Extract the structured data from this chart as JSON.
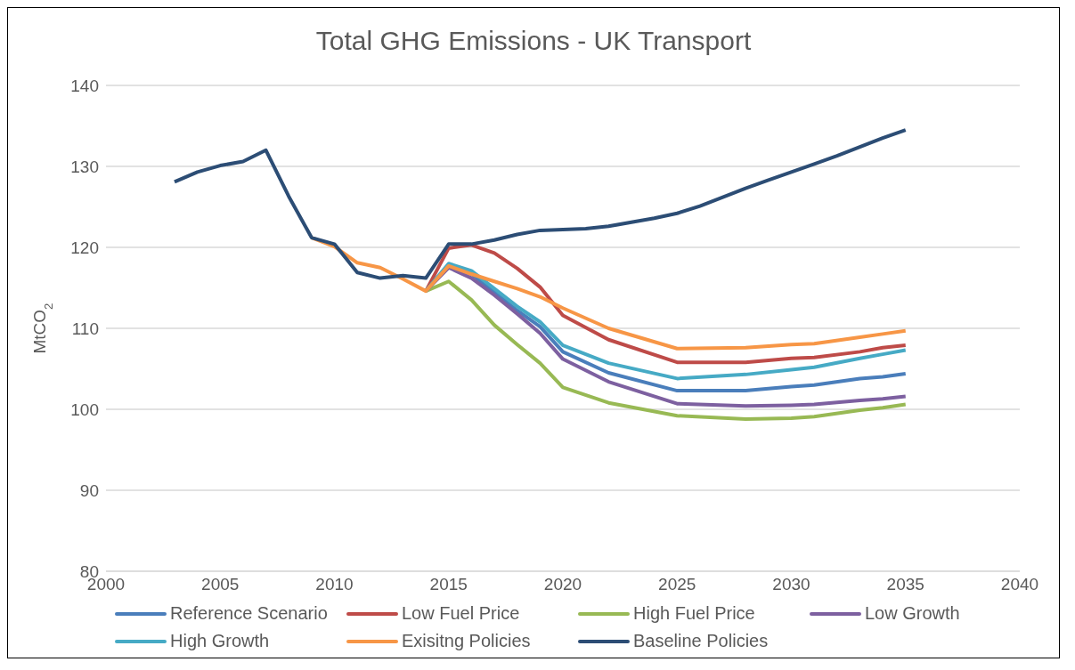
{
  "chart_data": {
    "type": "line",
    "title": "Total GHG Emissions - UK Transport",
    "ylabel": "MtCO$_{2}$",
    "xlim": [
      2000,
      2040
    ],
    "xticks": [
      2000,
      2005,
      2010,
      2015,
      2020,
      2025,
      2030,
      2035,
      2040
    ],
    "ylim": [
      80,
      140
    ],
    "yticks": [
      80,
      90,
      100,
      110,
      120,
      130,
      140
    ],
    "grid": "y",
    "legend": "bottom",
    "marker": "none",
    "line_style": "solid",
    "series": [
      {
        "name": "Reference Scenario",
        "color": "#4a7ebb",
        "x": [
          2014,
          2015,
          2016,
          2017,
          2018,
          2019,
          2020,
          2022,
          2025,
          2028,
          2030,
          2031,
          2033,
          2034,
          2035
        ],
        "values": [
          114.6,
          117.8,
          116.7,
          114.5,
          112.2,
          110.2,
          107.1,
          104.5,
          102.3,
          102.3,
          102.8,
          103.0,
          103.8,
          104.0,
          104.4
        ]
      },
      {
        "name": "Low Fuel Price",
        "color": "#be4b48",
        "x": [
          2014,
          2015,
          2016,
          2017,
          2018,
          2019,
          2020,
          2022,
          2025,
          2028,
          2030,
          2031,
          2033,
          2034,
          2035
        ],
        "values": [
          114.6,
          119.9,
          120.3,
          119.3,
          117.4,
          115.1,
          111.6,
          108.6,
          105.8,
          105.8,
          106.3,
          106.4,
          107.1,
          107.6,
          107.9
        ]
      },
      {
        "name": "High Fuel Price",
        "color": "#98b954",
        "x": [
          2014,
          2015,
          2016,
          2017,
          2018,
          2019,
          2020,
          2022,
          2025,
          2028,
          2030,
          2031,
          2033,
          2034,
          2035
        ],
        "values": [
          114.6,
          115.8,
          113.5,
          110.4,
          108.0,
          105.7,
          102.7,
          100.8,
          99.2,
          98.8,
          98.9,
          99.1,
          99.9,
          100.2,
          100.6
        ]
      },
      {
        "name": "Low Growth",
        "color": "#7d60a0",
        "x": [
          2014,
          2015,
          2016,
          2017,
          2018,
          2019,
          2020,
          2022,
          2025,
          2028,
          2030,
          2031,
          2033,
          2034,
          2035
        ],
        "values": [
          114.6,
          117.5,
          116.2,
          114.1,
          111.8,
          109.4,
          106.2,
          103.4,
          100.7,
          100.4,
          100.5,
          100.6,
          101.1,
          101.3,
          101.6
        ]
      },
      {
        "name": "High Growth",
        "color": "#46aac5",
        "x": [
          2014,
          2015,
          2016,
          2017,
          2018,
          2019,
          2020,
          2022,
          2025,
          2028,
          2030,
          2031,
          2033,
          2034,
          2035
        ],
        "values": [
          114.6,
          118.0,
          117.1,
          114.9,
          112.7,
          110.8,
          107.9,
          105.7,
          103.8,
          104.3,
          104.9,
          105.2,
          106.3,
          106.8,
          107.3
        ]
      },
      {
        "name": "Exisitng Policies",
        "color": "#f79646",
        "x": [
          2009,
          2010,
          2011,
          2012,
          2013,
          2014,
          2015,
          2016,
          2017,
          2018,
          2019,
          2020,
          2022,
          2025,
          2028,
          2030,
          2031,
          2033,
          2034,
          2035
        ],
        "values": [
          121.2,
          120.1,
          118.1,
          117.5,
          116.1,
          114.6,
          117.7,
          116.7,
          115.8,
          114.9,
          113.9,
          112.5,
          110.0,
          107.5,
          107.6,
          108.0,
          108.1,
          108.9,
          109.3,
          109.7
        ]
      },
      {
        "name": "Baseline Policies",
        "color": "#2c4d75",
        "x": [
          2003,
          2004,
          2005,
          2006,
          2007,
          2008,
          2009,
          2010,
          2011,
          2012,
          2013,
          2014,
          2015,
          2016,
          2017,
          2018,
          2019,
          2020,
          2021,
          2022,
          2023,
          2024,
          2025,
          2026,
          2027,
          2028,
          2029,
          2030,
          2031,
          2032,
          2033,
          2034,
          2035
        ],
        "values": [
          128.1,
          129.3,
          130.1,
          130.6,
          132.0,
          126.3,
          121.2,
          120.4,
          116.9,
          116.2,
          116.5,
          116.2,
          120.4,
          120.4,
          120.9,
          121.6,
          122.1,
          122.2,
          122.3,
          122.6,
          123.1,
          123.6,
          124.2,
          125.1,
          126.2,
          127.3,
          128.3,
          129.3,
          130.3,
          131.3,
          132.4,
          133.5,
          134.5
        ]
      }
    ]
  }
}
